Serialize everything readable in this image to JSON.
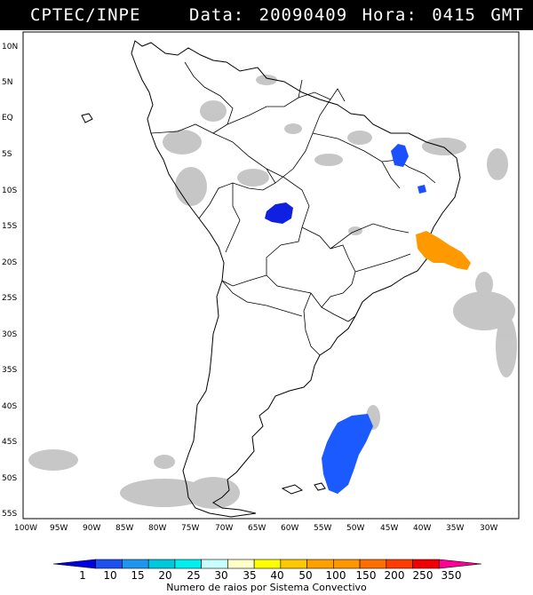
{
  "header": {
    "source": "CPTEC/INPE",
    "datetime": "Data: 20090409 Hora: 0415 GMT"
  },
  "map": {
    "lat_labels": [
      "10N",
      "5N",
      "EQ",
      "5S",
      "10S",
      "15S",
      "20S",
      "25S",
      "30S",
      "35S",
      "40S",
      "45S",
      "50S",
      "55S"
    ],
    "lon_labels": [
      "100W",
      "95W",
      "90W",
      "85W",
      "80W",
      "75W",
      "70W",
      "65W",
      "60W",
      "55W",
      "50W",
      "45W",
      "40W",
      "35W",
      "30W"
    ]
  },
  "legend": {
    "ticks": [
      "1",
      "10",
      "15",
      "20",
      "25",
      "30",
      "35",
      "40",
      "50",
      "100",
      "150",
      "200",
      "250",
      "350"
    ],
    "title": "Numero de raios por Sistema Convectivo",
    "colors": [
      "#0000e0",
      "#1e50f0",
      "#1e96f0",
      "#00c8dc",
      "#00f0f0",
      "#c8ffff",
      "#ffffc8",
      "#ffff00",
      "#ffc800",
      "#ffa000",
      "#ff9600",
      "#ff6e00",
      "#ff3c00",
      "#f00000",
      "#ff0096"
    ]
  },
  "systems": [
    {
      "name": "blue-cluster-central-brazil",
      "color": "#1020e0"
    },
    {
      "name": "blue-cluster-northeast",
      "color": "#1a50ff"
    },
    {
      "name": "orange-cluster-atlantic",
      "color": "#ff9900"
    },
    {
      "name": "blue-cluster-south-atlantic",
      "color": "#1a5aff"
    }
  ]
}
